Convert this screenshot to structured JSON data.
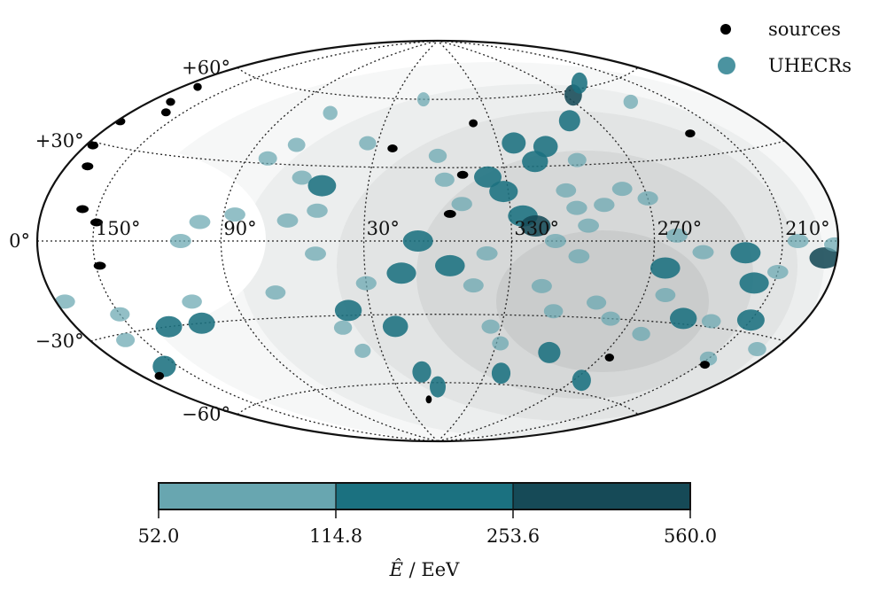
{
  "chart_data": {
    "type": "scatter",
    "projection": "hammer-aitoff",
    "coordinate_system": "galactic",
    "longitude_ticks": [
      "150°",
      "90°",
      "30°",
      "330°",
      "270°",
      "210°"
    ],
    "longitude_tick_values": [
      150,
      90,
      30,
      -30,
      -90,
      -150
    ],
    "latitude_ticks": [
      "+60°",
      "+30°",
      "0°",
      "−30°",
      "−60°"
    ],
    "latitude_tick_values": [
      60,
      30,
      0,
      -30,
      -60
    ],
    "grid": true,
    "legend": {
      "placement": "top-right",
      "entries": [
        {
          "label": "sources",
          "color": "#000000"
        },
        {
          "label": "UHECRs",
          "color": "#4b93a0"
        }
      ]
    },
    "colorbar": {
      "label_pre": "Ê",
      "label_post": " / EeV",
      "ticks": [
        "52.0",
        "114.8",
        "253.6",
        "560.0"
      ],
      "bins": [
        {
          "range": [
            52.0,
            114.8
          ],
          "color": "#68a6b0"
        },
        {
          "range": [
            114.8,
            253.6
          ],
          "color": "#1b7180"
        },
        {
          "range": [
            253.6,
            560.0
          ],
          "color": "#164a57"
        }
      ]
    },
    "exposure_shading": [
      "#f6f7f7",
      "#eceeee",
      "#e2e4e4",
      "#d6d8d8",
      "#cacccc"
    ],
    "sources": [
      [
        171,
        52
      ],
      [
        168,
        46
      ],
      [
        160,
        43
      ],
      [
        178,
        37
      ],
      [
        176,
        29
      ],
      [
        168,
        23
      ],
      [
        158,
        10
      ],
      [
        149,
        6
      ],
      [
        148,
        -8
      ],
      [
        22,
        38
      ],
      [
        -20,
        49
      ],
      [
        -11,
        27
      ],
      [
        -5,
        11
      ],
      [
        -133,
        38
      ],
      [
        -153,
        -42
      ],
      [
        -95,
        -45
      ],
      [
        170,
        -44
      ],
      [
        8,
        -68
      ]
    ],
    "uhecrs": [
      {
        "l": -96,
        "b": 58,
        "e": 420
      },
      {
        "l": -115,
        "b": 62,
        "e": 180
      },
      {
        "l": -125,
        "b": 52,
        "e": 70
      },
      {
        "l": -38,
        "b": 40,
        "e": 180
      },
      {
        "l": -53,
        "b": 38,
        "e": 150
      },
      {
        "l": -45,
        "b": 32,
        "e": 190
      },
      {
        "l": -22,
        "b": 26,
        "e": 130
      },
      {
        "l": -28,
        "b": 20,
        "e": 200
      },
      {
        "l": -35,
        "b": 10,
        "e": 180
      },
      {
        "l": -40,
        "b": 6,
        "e": 300
      },
      {
        "l": -48,
        "b": 0,
        "e": 95
      },
      {
        "l": -58,
        "b": -6,
        "e": 85
      },
      {
        "l": -62,
        "b": 6,
        "e": 90
      },
      {
        "l": -70,
        "b": 14,
        "e": 80
      },
      {
        "l": -80,
        "b": 20,
        "e": 75
      },
      {
        "l": -90,
        "b": 16,
        "e": 90
      },
      {
        "l": -100,
        "b": 2,
        "e": 80
      },
      {
        "l": -112,
        "b": -4,
        "e": 70
      },
      {
        "l": -96,
        "b": -10,
        "e": 150
      },
      {
        "l": -132,
        "b": -4,
        "e": 160
      },
      {
        "l": -140,
        "b": -14,
        "e": 180
      },
      {
        "l": -150,
        "b": -10,
        "e": 90
      },
      {
        "l": -158,
        "b": 0,
        "e": 80
      },
      {
        "l": -173,
        "b": -5,
        "e": 380
      },
      {
        "l": -178,
        "b": -1,
        "e": 75
      },
      {
        "l": -115,
        "b": -28,
        "e": 170
      },
      {
        "l": -150,
        "b": -26,
        "e": 160
      },
      {
        "l": -100,
        "b": -35,
        "e": 90
      },
      {
        "l": -70,
        "b": -24,
        "e": 85
      },
      {
        "l": -52,
        "b": -28,
        "e": 80
      },
      {
        "l": -32,
        "b": -42,
        "e": 80
      },
      {
        "l": -60,
        "b": -45,
        "e": 200
      },
      {
        "l": -95,
        "b": -55,
        "e": 150
      },
      {
        "l": -20,
        "b": -5,
        "e": 90
      },
      {
        "l": -5,
        "b": -10,
        "e": 150
      },
      {
        "l": -15,
        "b": -18,
        "e": 80
      },
      {
        "l": 8,
        "b": 0,
        "e": 160
      },
      {
        "l": 15,
        "b": -13,
        "e": 160
      },
      {
        "l": 20,
        "b": -35,
        "e": 150
      },
      {
        "l": 40,
        "b": -28,
        "e": 180
      },
      {
        "l": 45,
        "b": -35,
        "e": 80
      },
      {
        "l": 30,
        "b": -17,
        "e": 80
      },
      {
        "l": 50,
        "b": -5,
        "e": 85
      },
      {
        "l": 50,
        "b": 12,
        "e": 80
      },
      {
        "l": 60,
        "b": 25,
        "e": 80
      },
      {
        "l": 50,
        "b": 22,
        "e": 230
      },
      {
        "l": 35,
        "b": 40,
        "e": 80
      },
      {
        "l": 70,
        "b": 38,
        "e": 80
      },
      {
        "l": 80,
        "b": 32,
        "e": 80
      },
      {
        "l": 62,
        "b": 8,
        "e": 80
      },
      {
        "l": 85,
        "b": 10,
        "e": 80
      },
      {
        "l": 100,
        "b": 7,
        "e": 80
      },
      {
        "l": 108,
        "b": 0,
        "e": 80
      },
      {
        "l": 70,
        "b": -20,
        "e": 80
      },
      {
        "l": 110,
        "b": -22,
        "e": 80
      },
      {
        "l": 112,
        "b": -30,
        "e": 150
      },
      {
        "l": 130,
        "b": -30,
        "e": 180
      },
      {
        "l": 150,
        "b": -24,
        "e": 90
      },
      {
        "l": 160,
        "b": -32,
        "e": 90
      },
      {
        "l": 175,
        "b": -18,
        "e": 80
      },
      {
        "l": 158,
        "b": -42,
        "e": 190
      },
      {
        "l": 10,
        "b": -55,
        "e": 160
      },
      {
        "l": 0,
        "b": -62,
        "e": 200
      },
      {
        "l": -40,
        "b": -55,
        "e": 180
      },
      {
        "l": -130,
        "b": -28,
        "e": 80
      },
      {
        "l": 10,
        "b": 60,
        "e": 80
      },
      {
        "l": 0,
        "b": 35,
        "e": 80
      },
      {
        "l": -75,
        "b": 48,
        "e": 150
      },
      {
        "l": -65,
        "b": 32,
        "e": 80
      },
      {
        "l": -80,
        "b": -30,
        "e": 85
      },
      {
        "l": -25,
        "b": -35,
        "e": 90
      },
      {
        "l": -44,
        "b": -18,
        "e": 85
      },
      {
        "l": -10,
        "b": 15,
        "e": 80
      },
      {
        "l": -3,
        "b": 25,
        "e": 80
      },
      {
        "l": -100,
        "b": -20,
        "e": 80
      },
      {
        "l": 65,
        "b": 52,
        "e": 80
      },
      {
        "l": 40,
        "b": -45,
        "e": 80
      },
      {
        "l": -150,
        "b": -40,
        "e": 80
      },
      {
        "l": -170,
        "b": -34,
        "e": 90
      },
      {
        "l": -55,
        "b": 20,
        "e": 85
      },
      {
        "l": -58,
        "b": 13,
        "e": 80
      }
    ]
  }
}
